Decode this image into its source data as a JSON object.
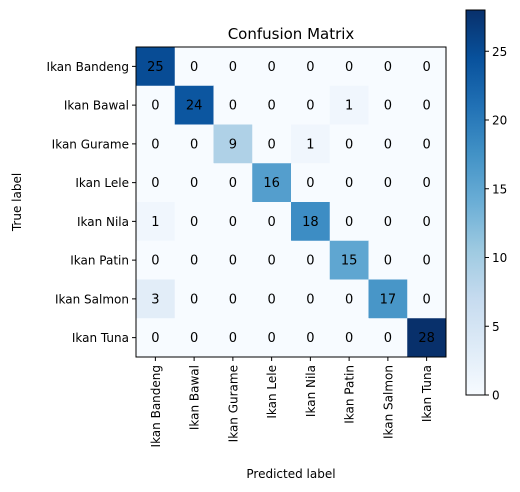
{
  "chart_data": {
    "type": "heatmap",
    "title": "Confusion Matrix",
    "xlabel": "Predicted label",
    "ylabel": "True label",
    "labels": [
      "Ikan Bandeng",
      "Ikan Bawal",
      "Ikan Gurame",
      "Ikan Lele",
      "Ikan Nila",
      "Ikan Patin",
      "Ikan Salmon",
      "Ikan Tuna"
    ],
    "matrix": [
      [
        25,
        0,
        0,
        0,
        0,
        0,
        0,
        0
      ],
      [
        0,
        24,
        0,
        0,
        0,
        1,
        0,
        0
      ],
      [
        0,
        0,
        9,
        0,
        1,
        0,
        0,
        0
      ],
      [
        0,
        0,
        0,
        16,
        0,
        0,
        0,
        0
      ],
      [
        1,
        0,
        0,
        0,
        18,
        0,
        0,
        0
      ],
      [
        0,
        0,
        0,
        0,
        0,
        15,
        0,
        0
      ],
      [
        3,
        0,
        0,
        0,
        0,
        0,
        17,
        0
      ],
      [
        0,
        0,
        0,
        0,
        0,
        0,
        0,
        28
      ]
    ],
    "colormap": "Blues",
    "vmin": 0,
    "vmax": 28,
    "colorbar_ticks": [
      0,
      5,
      10,
      15,
      20,
      25
    ],
    "colorbar_tick_labels": [
      "0",
      "5",
      "10",
      "15",
      "20",
      "25"
    ]
  }
}
